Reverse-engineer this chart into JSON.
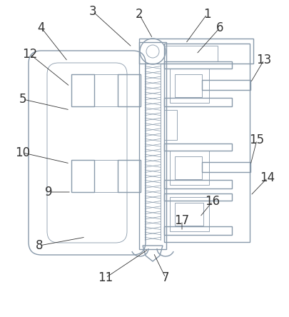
{
  "bg_color": "#ffffff",
  "line_color": "#8899aa",
  "line_width": 1.0,
  "thin_line": 0.6,
  "label_fontsize": 12
}
